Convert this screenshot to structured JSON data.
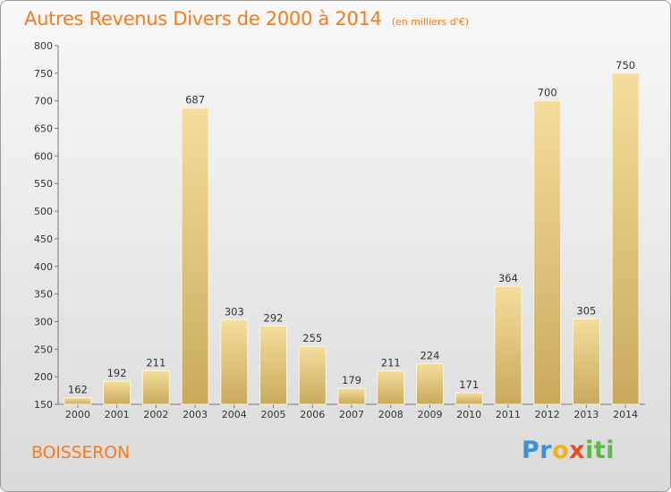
{
  "title": "Autres Revenus Divers de 2000 à 2014",
  "unit_note": "(en milliers d'€)",
  "location": "BOISSERON",
  "brand": {
    "parts": [
      "Pr",
      "o",
      "x",
      "iti"
    ],
    "colors": [
      "#3a8fd6",
      "#f2b01d",
      "#e84c2a",
      "#5ab947"
    ]
  },
  "chart_data": {
    "type": "bar",
    "title": "Autres Revenus Divers de 2000 à 2014",
    "xlabel": "",
    "ylabel": "",
    "categories": [
      "2000",
      "2001",
      "2002",
      "2003",
      "2004",
      "2005",
      "2006",
      "2007",
      "2008",
      "2009",
      "2010",
      "2011",
      "2012",
      "2013",
      "2014"
    ],
    "values": [
      162,
      192,
      211,
      687,
      303,
      292,
      255,
      179,
      211,
      224,
      171,
      364,
      700,
      305,
      750
    ],
    "ylim": [
      150,
      800
    ],
    "yticks": [
      150,
      200,
      250,
      300,
      350,
      400,
      450,
      500,
      550,
      600,
      650,
      700,
      750,
      800
    ],
    "grid": false,
    "bar_color": "#e2c77a"
  }
}
